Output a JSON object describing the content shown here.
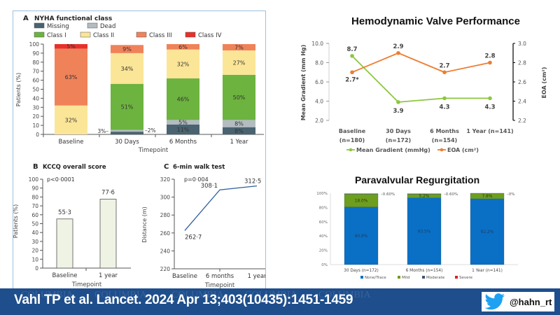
{
  "chart_data": [
    {
      "id": "nyha",
      "type": "bar",
      "stacked": true,
      "panel": "A",
      "title": "NYHA functional class",
      "xlabel": "Timepoint",
      "ylabel": "Patients (%)",
      "ylim": [
        0,
        100
      ],
      "yticks": [
        "0",
        "10",
        "20",
        "30",
        "40",
        "50",
        "60",
        "70",
        "80",
        "90",
        "100"
      ],
      "categories": [
        "Baseline",
        "30 Days",
        "6 Months",
        "1 Year"
      ],
      "legend": [
        "Missing",
        "Dead",
        "Class I",
        "Class II",
        "Class III",
        "Class IV"
      ],
      "series": [
        {
          "name": "Missing",
          "color": "#4a6370",
          "values": [
            0,
            3,
            11,
            8
          ],
          "labels": [
            "",
            "3%",
            "11%",
            "8%"
          ]
        },
        {
          "name": "Dead",
          "color": "#b3bcc1",
          "values": [
            0,
            2,
            5,
            8
          ],
          "labels": [
            "",
            "2%",
            "5%",
            "8%"
          ]
        },
        {
          "name": "Class I",
          "color": "#6db33f",
          "values": [
            0,
            51,
            46,
            50
          ],
          "labels": [
            "",
            "51%",
            "46%",
            "50%"
          ]
        },
        {
          "name": "Class II",
          "color": "#fbe597",
          "values": [
            32,
            34,
            32,
            27
          ],
          "labels": [
            "32%",
            "34%",
            "32%",
            "27%"
          ]
        },
        {
          "name": "Class III",
          "color": "#f0825a",
          "values": [
            63,
            9,
            6,
            7
          ],
          "labels": [
            "63%",
            "9%",
            "6%",
            "7%"
          ]
        },
        {
          "name": "Class IV",
          "color": "#e8302a",
          "values": [
            5,
            0,
            0,
            0
          ],
          "labels": [
            "5%",
            "",
            "",
            ""
          ]
        }
      ]
    },
    {
      "id": "kccq",
      "type": "bar",
      "panel": "B",
      "title": "KCCQ overall score",
      "annotation": "p<0·0001",
      "xlabel": "Timepoint",
      "ylabel": "Patients (%)",
      "ylim": [
        0,
        100
      ],
      "yticks": [
        "0",
        "10",
        "20",
        "30",
        "40",
        "50",
        "60",
        "70",
        "80",
        "90",
        "100"
      ],
      "categories": [
        "Baseline",
        "1 year"
      ],
      "values": [
        55.3,
        77.6
      ],
      "labels": [
        "55·3",
        "77·6"
      ],
      "color": "#eef3e4"
    },
    {
      "id": "walk",
      "type": "line",
      "panel": "C",
      "title": "6-min walk test",
      "annotation": "p=0·004",
      "xlabel": "Timepoint",
      "ylabel": "Distance (m)",
      "ylim": [
        220,
        320
      ],
      "yticks": [
        "220",
        "240",
        "260",
        "280",
        "300",
        "320"
      ],
      "categories": [
        "Baseline",
        "6 months",
        "1 year"
      ],
      "values": [
        262.7,
        308.1,
        312.5
      ],
      "labels": [
        "262·7",
        "308·1",
        "312·5"
      ],
      "color": "#2d5fa0"
    },
    {
      "id": "hemo",
      "type": "line",
      "title": "Hemodynamic Valve Performance",
      "ylabel": "Mean Gradient (mm Hg)",
      "y2label": "EOA (cm²)",
      "ylim": [
        2.0,
        10.0
      ],
      "y2lim": [
        2.2,
        3.0
      ],
      "yticks": [
        "2.0",
        "4.0",
        "6.0",
        "8.0",
        "10.0"
      ],
      "y2ticks": [
        "2.2",
        "2.4",
        "2.6",
        "2.8",
        "3.0"
      ],
      "categories": [
        "Baseline (n=180)",
        "30 Days (n=172)",
        "6 Months (n=154)",
        "1 Year (n=141)"
      ],
      "category_lines": [
        [
          "Baseline",
          "(n=180)"
        ],
        [
          "30 Days",
          "(n=172)"
        ],
        [
          "6 Months",
          "(n=154)"
        ],
        [
          "1 Year (n=141)",
          ""
        ]
      ],
      "series": [
        {
          "name": "Mean Gradient (mmHg)",
          "axis": "left",
          "color": "#8dc63f",
          "values": [
            8.7,
            3.9,
            4.3,
            4.3
          ],
          "labels": [
            "8.7",
            "3.9",
            "4.3",
            "4.3"
          ]
        },
        {
          "name": "EOA (cm²)",
          "axis": "right",
          "color": "#ed7d31",
          "values": [
            2.7,
            2.9,
            2.7,
            2.8
          ],
          "labels": [
            "2.7*",
            "2.9",
            "2.7",
            "2.8"
          ]
        }
      ],
      "legend_position": "bottom"
    },
    {
      "id": "pvr",
      "type": "bar",
      "stacked": true,
      "title": "Paravalvular Regurgitation",
      "ylim": [
        0,
        100
      ],
      "yticks": [
        "0%",
        "20%",
        "40%",
        "60%",
        "80%",
        "100%"
      ],
      "categories": [
        "30 Days (n=172)",
        "6 Months (n=154)",
        "1 Year (n=141)"
      ],
      "series": [
        {
          "name": "None/Trace",
          "color": "#0a70c6",
          "values": [
            80.8,
            93.5,
            92.2
          ],
          "labels": [
            "80.8%",
            "93.5%",
            "92.2%"
          ]
        },
        {
          "name": "Mild",
          "color": "#6e9e1e",
          "values": [
            18.0,
            5.2,
            7.8
          ],
          "labels": [
            "18.0%",
            "5.2%",
            "7.8%"
          ]
        },
        {
          "name": "Moderate",
          "color": "#44546a",
          "values": [
            0.6,
            0.6,
            0
          ],
          "labels": [
            "0.60%",
            "0.60%",
            "0%"
          ]
        },
        {
          "name": "Severe",
          "color": "#e02020",
          "values": [
            0,
            0,
            0
          ],
          "labels": [
            "",
            "",
            ""
          ]
        }
      ],
      "legend_position": "bottom"
    }
  ],
  "footer": {
    "citation": "Vahl TP et al. Lancet. 2024 Apr 13;403(10435):1451-1459",
    "watermark": "COLUMBIA",
    "twitter_handle": "@hahn_rt",
    "twitter_icon": "twitter-bird-icon"
  }
}
